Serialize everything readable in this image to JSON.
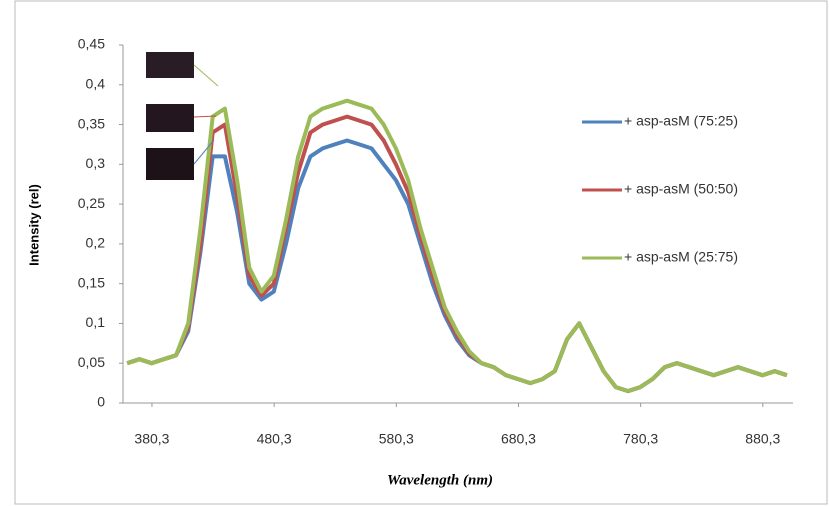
{
  "chart_data": {
    "type": "line",
    "ylabel": "Intensity (rel)",
    "xlabel": "Wavelength (nm)",
    "x": [
      360,
      370,
      380,
      390,
      400,
      410,
      420,
      430,
      440,
      450,
      460,
      470,
      480,
      490,
      500,
      510,
      520,
      530,
      540,
      550,
      560,
      570,
      580,
      590,
      600,
      610,
      620,
      630,
      640,
      650,
      660,
      670,
      680,
      690,
      700,
      710,
      720,
      730,
      740,
      750,
      760,
      770,
      780,
      790,
      800,
      810,
      820,
      830,
      840,
      850,
      860,
      870,
      880,
      890,
      900
    ],
    "series": [
      {
        "name": "+ asp-asM (75:25)",
        "color": "#4f81bd",
        "values": [
          0.05,
          0.055,
          0.05,
          0.055,
          0.06,
          0.09,
          0.19,
          0.31,
          0.31,
          0.24,
          0.15,
          0.13,
          0.14,
          0.2,
          0.27,
          0.31,
          0.32,
          0.325,
          0.33,
          0.325,
          0.32,
          0.3,
          0.28,
          0.25,
          0.2,
          0.15,
          0.11,
          0.08,
          0.06,
          0.05,
          0.045,
          0.035,
          0.03,
          0.025,
          0.03,
          0.04,
          0.08,
          0.1,
          0.07,
          0.04,
          0.02,
          0.015,
          0.02,
          0.03,
          0.045,
          0.05,
          0.045,
          0.04,
          0.035,
          0.04,
          0.045,
          0.04,
          0.035,
          0.04,
          0.035
        ]
      },
      {
        "name": "+ asp-asM (50:50)",
        "color": "#c0504d",
        "values": [
          0.05,
          0.055,
          0.05,
          0.055,
          0.06,
          0.095,
          0.2,
          0.34,
          0.35,
          0.26,
          0.16,
          0.135,
          0.15,
          0.22,
          0.29,
          0.34,
          0.35,
          0.355,
          0.36,
          0.355,
          0.35,
          0.33,
          0.3,
          0.265,
          0.21,
          0.16,
          0.115,
          0.085,
          0.062,
          0.05,
          0.045,
          0.035,
          0.03,
          0.025,
          0.03,
          0.04,
          0.08,
          0.1,
          0.07,
          0.04,
          0.02,
          0.015,
          0.02,
          0.03,
          0.045,
          0.05,
          0.045,
          0.04,
          0.035,
          0.04,
          0.045,
          0.04,
          0.035,
          0.04,
          0.035
        ]
      },
      {
        "name": "+ asp-asM (25:75)",
        "color": "#9bbb59",
        "values": [
          0.05,
          0.055,
          0.05,
          0.055,
          0.06,
          0.1,
          0.22,
          0.36,
          0.37,
          0.28,
          0.17,
          0.14,
          0.16,
          0.23,
          0.31,
          0.36,
          0.37,
          0.375,
          0.38,
          0.375,
          0.37,
          0.35,
          0.32,
          0.28,
          0.22,
          0.17,
          0.12,
          0.09,
          0.065,
          0.05,
          0.045,
          0.035,
          0.03,
          0.025,
          0.03,
          0.04,
          0.08,
          0.1,
          0.07,
          0.04,
          0.02,
          0.015,
          0.02,
          0.03,
          0.045,
          0.05,
          0.045,
          0.04,
          0.035,
          0.04,
          0.045,
          0.04,
          0.035,
          0.04,
          0.035
        ]
      }
    ],
    "xlim": [
      356.6,
      905
    ],
    "xticks": [
      {
        "value": 380.3,
        "label": "380,3"
      },
      {
        "value": 480.3,
        "label": "480,3"
      },
      {
        "value": 580.3,
        "label": "580,3"
      },
      {
        "value": 680.3,
        "label": "680,3"
      },
      {
        "value": 780.3,
        "label": "780,3"
      },
      {
        "value": 880.3,
        "label": "880,3"
      }
    ],
    "ylim": [
      0,
      0.45
    ],
    "yticks": [
      0,
      {
        "value": 0.05,
        "label": "0,05"
      },
      {
        "value": 0.1,
        "label": "0,1"
      },
      {
        "value": 0.15,
        "label": "0,15"
      },
      {
        "value": 0.2,
        "label": "0,2"
      },
      {
        "value": 0.25,
        "label": "0,25"
      },
      {
        "value": 0.3,
        "label": "0,3"
      },
      {
        "value": 0.35,
        "label": "0,35"
      },
      {
        "value": 0.4,
        "label": "0,4"
      },
      {
        "value": 0.45,
        "label": "0,45"
      }
    ],
    "legend": "right"
  }
}
